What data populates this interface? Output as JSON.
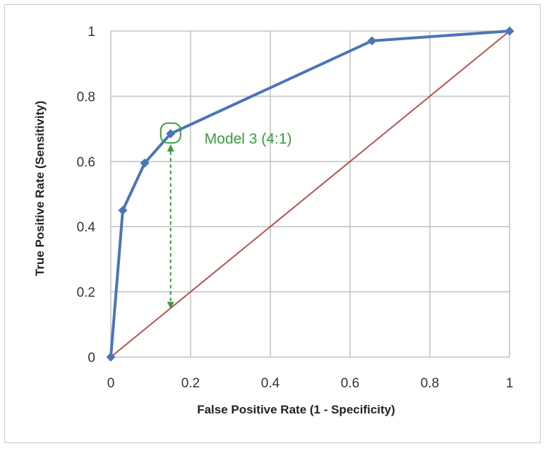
{
  "chart_data": {
    "type": "line",
    "title": "",
    "xlabel": "False Positive Rate  (1 - Specificity)",
    "ylabel": "True Positive Rate  (Sensitivity)",
    "xlim": [
      0,
      1
    ],
    "ylim": [
      0,
      1
    ],
    "grid": true,
    "x_ticks": [
      {
        "value": 0,
        "label": "0"
      },
      {
        "value": 0.2,
        "label": "0.2"
      },
      {
        "value": 0.4,
        "label": "0.4"
      },
      {
        "value": 0.6,
        "label": "0.6"
      },
      {
        "value": 0.8,
        "label": "0.8"
      },
      {
        "value": 1,
        "label": "1"
      }
    ],
    "y_ticks": [
      {
        "value": 0,
        "label": "0"
      },
      {
        "value": 0.2,
        "label": "0.2"
      },
      {
        "value": 0.4,
        "label": "0.4"
      },
      {
        "value": 0.6,
        "label": "0.6"
      },
      {
        "value": 0.8,
        "label": "0.8"
      },
      {
        "value": 1,
        "label": "1"
      }
    ],
    "series": [
      {
        "kind": "roc",
        "color": "#4a76b8",
        "marker": "diamond",
        "points": [
          {
            "x": 0,
            "y": 0
          },
          {
            "x": 0.03,
            "y": 0.45
          },
          {
            "x": 0.085,
            "y": 0.595
          },
          {
            "x": 0.15,
            "y": 0.685
          },
          {
            "x": 0.655,
            "y": 0.97
          },
          {
            "x": 1,
            "y": 1
          }
        ]
      },
      {
        "kind": "diagonal",
        "color": "#b5524e",
        "points": [
          {
            "x": 0,
            "y": 0
          },
          {
            "x": 1,
            "y": 1
          }
        ]
      }
    ],
    "annotation": {
      "text": "Model 3 (4:1)",
      "color": "#3a9a3a",
      "point": {
        "x": 0.15,
        "y": 0.685
      },
      "arrow_from": {
        "x": 0.15,
        "y": 0.65
      },
      "arrow_to": {
        "x": 0.15,
        "y": 0.15
      }
    }
  }
}
